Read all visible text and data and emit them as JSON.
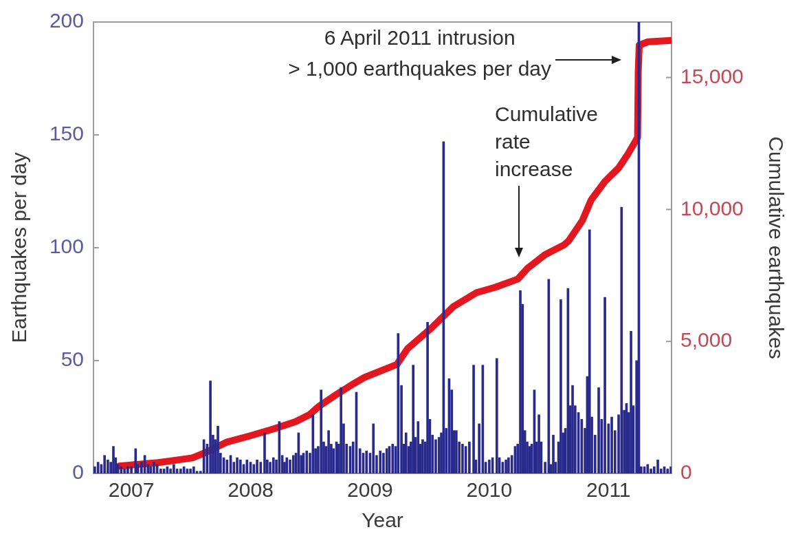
{
  "chart_data": {
    "type": "bar",
    "xlabel": "Year",
    "ylabel": "Earthquakes per day",
    "y2label": "Cumulative earthquakes",
    "xlim": [
      "2006-09-07",
      "2011-07-13"
    ],
    "xticks": [
      "2007",
      "2008",
      "2009",
      "2010",
      "2011"
    ],
    "ylim": [
      0,
      200
    ],
    "yticks": [
      0,
      50,
      100,
      150,
      200
    ],
    "y2lim": [
      0,
      17100
    ],
    "y2ticks": [
      0,
      {
        "value": 5000,
        "label": "5,000"
      },
      {
        "value": 10000,
        "label": "10,000"
      },
      {
        "value": 15000,
        "label": "15,000"
      }
    ],
    "annotations": [
      "6 April 2011 intrusion\n> 1,000 earthquakes per day",
      "Cumulative\nrate\nincrease"
    ],
    "series": [
      {
        "color": "#2a2a8c",
        "x": [
          "2006-09-11",
          "2006-09-21",
          "2006-10-01",
          "2006-10-11",
          "2006-10-21",
          "2006-10-30",
          "2006-11-07",
          "2006-11-14",
          "2006-11-21",
          "2006-12-01",
          "2006-12-11",
          "2006-12-21",
          "2007-01-01",
          "2007-01-14",
          "2007-01-21",
          "2007-02-01",
          "2007-02-11",
          "2007-02-21",
          "2007-03-01",
          "2007-03-11",
          "2007-03-21",
          "2007-04-01",
          "2007-04-11",
          "2007-04-21",
          "2007-05-01",
          "2007-05-11",
          "2007-05-21",
          "2007-06-01",
          "2007-06-11",
          "2007-06-21",
          "2007-07-01",
          "2007-07-11",
          "2007-07-21",
          "2007-08-01",
          "2007-08-11",
          "2007-08-21",
          "2007-08-31",
          "2007-09-08",
          "2007-09-15",
          "2007-09-23",
          "2007-10-01",
          "2007-10-11",
          "2007-10-21",
          "2007-11-01",
          "2007-11-11",
          "2007-11-21",
          "2007-12-01",
          "2007-12-11",
          "2007-12-21",
          "2008-01-01",
          "2008-01-11",
          "2008-01-21",
          "2008-02-01",
          "2008-02-13",
          "2008-02-21",
          "2008-03-01",
          "2008-03-11",
          "2008-03-20",
          "2008-03-29",
          "2008-04-07",
          "2008-04-14",
          "2008-04-21",
          "2008-05-01",
          "2008-05-11",
          "2008-05-19",
          "2008-05-27",
          "2008-06-04",
          "2008-06-11",
          "2008-06-21",
          "2008-07-01",
          "2008-07-10",
          "2008-07-18",
          "2008-07-26",
          "2008-08-04",
          "2008-08-12",
          "2008-08-19",
          "2008-08-27",
          "2008-09-04",
          "2008-09-11",
          "2008-09-20",
          "2008-09-27",
          "2008-10-04",
          "2008-10-12",
          "2008-10-21",
          "2008-11-01",
          "2008-11-10",
          "2008-11-20",
          "2008-12-01",
          "2008-12-11",
          "2008-12-21",
          "2009-01-01",
          "2009-01-11",
          "2009-01-21",
          "2009-02-01",
          "2009-02-11",
          "2009-02-21",
          "2009-03-01",
          "2009-03-11",
          "2009-03-20",
          "2009-03-28",
          "2009-04-07",
          "2009-04-14",
          "2009-04-21",
          "2009-04-29",
          "2009-05-06",
          "2009-05-13",
          "2009-05-20",
          "2009-05-28",
          "2009-06-04",
          "2009-06-11",
          "2009-06-19",
          "2009-06-26",
          "2009-07-03",
          "2009-07-11",
          "2009-07-21",
          "2009-07-31",
          "2009-08-07",
          "2009-08-14",
          "2009-08-22",
          "2009-08-31",
          "2009-09-08",
          "2009-09-15",
          "2009-09-22",
          "2009-10-01",
          "2009-10-11",
          "2009-10-21",
          "2009-11-01",
          "2009-11-14",
          "2009-11-21",
          "2009-12-01",
          "2009-12-12",
          "2009-12-21",
          "2010-01-01",
          "2010-01-11",
          "2010-01-24",
          "2010-02-01",
          "2010-02-11",
          "2010-02-21",
          "2010-03-01",
          "2010-03-11",
          "2010-03-21",
          "2010-03-29",
          "2010-04-06",
          "2010-04-13",
          "2010-04-20",
          "2010-04-27",
          "2010-05-04",
          "2010-05-11",
          "2010-05-19",
          "2010-05-26",
          "2010-06-02",
          "2010-06-09",
          "2010-06-21",
          "2010-07-02",
          "2010-07-09",
          "2010-07-16",
          "2010-07-23",
          "2010-08-01",
          "2010-08-08",
          "2010-08-15",
          "2010-08-22",
          "2010-08-30",
          "2010-09-06",
          "2010-09-13",
          "2010-09-21",
          "2010-10-01",
          "2010-10-11",
          "2010-10-21",
          "2010-10-28",
          "2010-11-04",
          "2010-11-11",
          "2010-11-21",
          "2010-12-02",
          "2010-12-11",
          "2010-12-21",
          "2011-01-01",
          "2011-01-11",
          "2011-01-21",
          "2011-02-01",
          "2011-02-10",
          "2011-02-18",
          "2011-02-25",
          "2011-03-04",
          "2011-03-11",
          "2011-03-18",
          "2011-03-28",
          "2011-04-04",
          "2011-04-11",
          "2011-04-21",
          "2011-05-01",
          "2011-05-11",
          "2011-05-21",
          "2011-06-01",
          "2011-06-11",
          "2011-06-21",
          "2011-07-01",
          "2011-07-11"
        ],
        "values": [
          3,
          5,
          4,
          8,
          6,
          5,
          12,
          7,
          4,
          3,
          2,
          3,
          3,
          11,
          4,
          5,
          8,
          4,
          3,
          5,
          4,
          2,
          2,
          3,
          2,
          4,
          2,
          2,
          3,
          2,
          2,
          3,
          1,
          1,
          15,
          13,
          41,
          17,
          15,
          21,
          9,
          7,
          6,
          8,
          5,
          7,
          6,
          4,
          6,
          5,
          4,
          6,
          5,
          18,
          6,
          5,
          7,
          6,
          23,
          8,
          5,
          7,
          6,
          8,
          9,
          18,
          8,
          9,
          10,
          9,
          26,
          11,
          12,
          37,
          14,
          12,
          19,
          13,
          11,
          14,
          13,
          38,
          22,
          13,
          12,
          14,
          36,
          11,
          9,
          10,
          9,
          22,
          8,
          10,
          9,
          11,
          12,
          13,
          12,
          62,
          39,
          13,
          18,
          12,
          14,
          48,
          16,
          23,
          13,
          15,
          14,
          67,
          24,
          17,
          15,
          16,
          18,
          147,
          20,
          42,
          37,
          19,
          19,
          14,
          13,
          12,
          14,
          48,
          6,
          22,
          48,
          5,
          6,
          7,
          51,
          7,
          5,
          6,
          7,
          8,
          12,
          13,
          81,
          75,
          19,
          14,
          12,
          13,
          37,
          14,
          26,
          14,
          5,
          86,
          4,
          17,
          5,
          14,
          77,
          18,
          20,
          82,
          30,
          39,
          30,
          27,
          24,
          20,
          43,
          108,
          25,
          17,
          38,
          24,
          78,
          22,
          25,
          19,
          26,
          118,
          28,
          31,
          27,
          63,
          30,
          50,
          200,
          3,
          3,
          4,
          2,
          3,
          6,
          2,
          3,
          2,
          3
        ]
      },
      {
        "type": "line",
        "axis": "y2",
        "color": "#e3171f",
        "x": [
          "2006-11-25",
          "2007-03-24",
          "2007-07-07",
          "2007-08-12",
          "2007-10-21",
          "2007-12-29",
          "2008-03-10",
          "2008-05-18",
          "2008-06-29",
          "2008-07-27",
          "2008-09-21",
          "2008-11-09",
          "2008-12-15",
          "2009-03-24",
          "2009-04-26",
          "2009-07-07",
          "2009-09-14",
          "2009-11-23",
          "2010-01-19",
          "2010-03-29",
          "2010-04-28",
          "2010-06-21",
          "2010-08-17",
          "2010-09-01",
          "2010-10-13",
          "2010-11-09",
          "2010-12-21",
          "2011-02-01",
          "2011-03-01",
          "2011-03-22",
          "2011-03-31",
          "2011-04-02",
          "2011-04-05",
          "2011-05-02",
          "2011-07-13"
        ],
        "values": [
          280,
          410,
          590,
          770,
          1190,
          1420,
          1680,
          1960,
          2220,
          2530,
          3000,
          3380,
          3640,
          4130,
          4730,
          5500,
          6330,
          6850,
          7050,
          7360,
          7770,
          8290,
          8650,
          8810,
          9580,
          10360,
          11060,
          11570,
          12090,
          12530,
          12730,
          15190,
          16220,
          16350,
          16400
        ]
      }
    ]
  }
}
